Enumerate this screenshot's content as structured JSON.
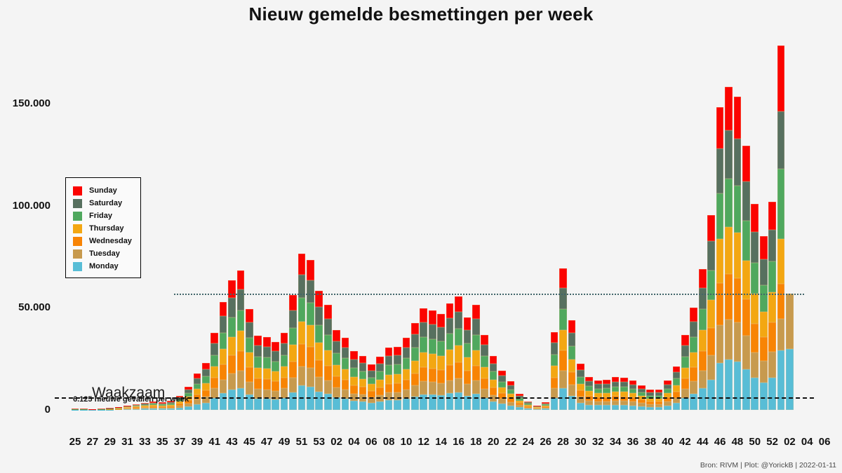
{
  "title": "Nieuw gemelde besmettingen per week",
  "footer": "Bron: RIVM | Plot: @YorickB |  2022-01-11",
  "colors": {
    "background": "#f4f4f4",
    "sunday": "#fb0400",
    "saturday": "#57705f",
    "friday": "#4fa85e",
    "thursday": "#f3a712",
    "wednesday": "#f88404",
    "tuesday": "#c79a4e",
    "monday": "#58bdd6",
    "dashed_line": "#101010",
    "dotted_line": "#42666a",
    "bar_edge": "#ebcd96"
  },
  "legend": {
    "items": [
      {
        "label": "Sunday",
        "color_key": "sunday"
      },
      {
        "label": "Saturday",
        "color_key": "saturday"
      },
      {
        "label": "Friday",
        "color_key": "friday"
      },
      {
        "label": "Thursday",
        "color_key": "thursday"
      },
      {
        "label": "Wednesday",
        "color_key": "wednesday"
      },
      {
        "label": "Tuesday",
        "color_key": "tuesday"
      },
      {
        "label": "Monday",
        "color_key": "monday"
      }
    ]
  },
  "y_axis": {
    "ticks": [
      {
        "value": 0,
        "label": "0"
      },
      {
        "value": 50000,
        "label": "50.000"
      },
      {
        "value": 100000,
        "label": "100.000"
      },
      {
        "value": 150000,
        "label": "150.000"
      }
    ]
  },
  "x_axis": {
    "tick_labels": [
      "25",
      "27",
      "29",
      "31",
      "33",
      "35",
      "37",
      "39",
      "41",
      "43",
      "45",
      "47",
      "49",
      "51",
      "53",
      "02",
      "04",
      "06",
      "08",
      "10",
      "12",
      "14",
      "16",
      "18",
      "20",
      "22",
      "24",
      "26",
      "28",
      "30",
      "32",
      "34",
      "36",
      "38",
      "40",
      "42",
      "44",
      "46",
      "48",
      "50",
      "52",
      "02",
      "04",
      "06"
    ]
  },
  "reference_lines": {
    "waakzaam": {
      "label": "Waakzaam",
      "sublabel": "6.125 nieuwe gevallen per week",
      "value": 6125,
      "style": "dashed"
    },
    "current_week_level": {
      "value": 57000,
      "style": "dotted"
    }
  },
  "chart_data": {
    "type": "bar",
    "stacked": true,
    "title": "Nieuw gemelde besmettingen per week",
    "xlabel": "",
    "ylabel": "",
    "ylim": [
      0,
      185000
    ],
    "grid": false,
    "legend_position": "upper-left",
    "stack_order_bottom_to_top": [
      "Monday",
      "Tuesday",
      "Wednesday",
      "Thursday",
      "Friday",
      "Saturday",
      "Sunday"
    ],
    "x_tick_labels": [
      "25",
      "27",
      "29",
      "31",
      "33",
      "35",
      "37",
      "39",
      "41",
      "43",
      "45",
      "47",
      "49",
      "51",
      "53",
      "02",
      "04",
      "06",
      "08",
      "10",
      "12",
      "14",
      "16",
      "18",
      "20",
      "22",
      "24",
      "26",
      "28",
      "30",
      "32",
      "34",
      "36",
      "38",
      "40",
      "42",
      "44",
      "46",
      "48",
      "50",
      "52",
      "02",
      "04",
      "06"
    ],
    "weeks_span": "2020-W25 through 2022-W02, one stacked bar per week",
    "weekly_totals": [
      600,
      500,
      400,
      500,
      800,
      1400,
      2200,
      2900,
      3600,
      4100,
      3700,
      4300,
      7000,
      11500,
      18000,
      23000,
      37600,
      53000,
      63400,
      68400,
      49600,
      36500,
      35800,
      33300,
      37600,
      56400,
      76600,
      73400,
      58200,
      51400,
      39000,
      35500,
      28700,
      26600,
      22300,
      26200,
      30500,
      31000,
      35400,
      42700,
      49700,
      48600,
      46900,
      52100,
      55700,
      45400,
      51500,
      36800,
      26300,
      19300,
      14000,
      8000,
      4200,
      2200,
      3700,
      38000,
      69200,
      43800,
      22700,
      16200,
      14500,
      14800,
      16000,
      15900,
      14400,
      11900,
      9800,
      9800,
      14400,
      21400,
      36700,
      50000,
      69000,
      95500,
      148200,
      158400,
      153500,
      129500,
      100900,
      85300,
      101800,
      178500,
      57000
    ],
    "default_day_fractions": {
      "monday": 0.155,
      "tuesday": 0.125,
      "wednesday": 0.14,
      "thursday": 0.145,
      "friday": 0.15,
      "saturday": 0.15,
      "sunday": 0.135
    },
    "day_overrides": {
      "81": {
        "monday": 29200,
        "tuesday": 15500,
        "wednesday": 17200,
        "thursday": 21700,
        "friday": 34400,
        "saturday": 28200,
        "sunday": 32300
      },
      "82": {
        "monday": 29700,
        "tuesday": 27300,
        "wednesday": 0,
        "thursday": 0,
        "friday": 0,
        "saturday": 0,
        "sunday": 0
      }
    }
  }
}
